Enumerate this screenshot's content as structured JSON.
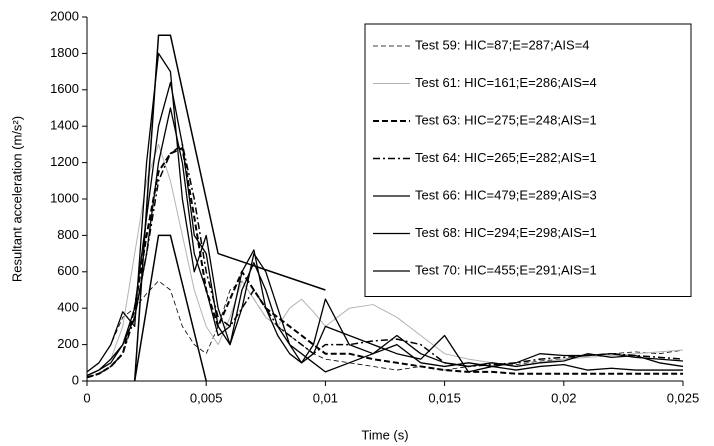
{
  "chart_data": {
    "type": "line",
    "xlabel": "Time (s)",
    "ylabel": "Resultant acceleration (m/s²)",
    "x": [
      0,
      0.0005,
      0.001,
      0.0015,
      0.002,
      0.0025,
      0.003,
      0.0035,
      0.004,
      0.0045,
      0.005,
      0.0055,
      0.006,
      0.0065,
      0.007,
      0.0075,
      0.008,
      0.0085,
      0.009,
      0.0095,
      0.01,
      0.011,
      0.012,
      0.013,
      0.014,
      0.015,
      0.016,
      0.017,
      0.018,
      0.019,
      0.02,
      0.021,
      0.022,
      0.023,
      0.024,
      0.025
    ],
    "series": [
      {
        "name": "Test 59: HIC=87;E=287;AIS=4",
        "color": "#000000",
        "width": 0.8,
        "dash": "5,3",
        "values": [
          50,
          100,
          200,
          350,
          400,
          480,
          550,
          500,
          300,
          200,
          150,
          300,
          500,
          550,
          450,
          350,
          300,
          250,
          200,
          150,
          120,
          100,
          80,
          60,
          80,
          60,
          80,
          100,
          90,
          110,
          120,
          140,
          150,
          160,
          150,
          170
        ]
      },
      {
        "name": "Test 61: HIC=161;E=286;AIS=4",
        "color": "#b4b4b4",
        "width": 1,
        "dash": "",
        "values": [
          30,
          60,
          120,
          300,
          700,
          1100,
          1300,
          1100,
          800,
          500,
          300,
          200,
          350,
          550,
          450,
          350,
          300,
          400,
          450,
          380,
          300,
          400,
          420,
          350,
          250,
          150,
          120,
          100,
          80,
          100,
          120,
          130,
          140,
          150,
          160,
          170
        ]
      },
      {
        "name": "Test 63: HIC=275;E=248;AIS=1",
        "color": "#000000",
        "width": 2,
        "dash": "6,3",
        "values": [
          20,
          40,
          80,
          150,
          400,
          800,
          1150,
          1250,
          1280,
          900,
          500,
          300,
          450,
          600,
          500,
          400,
          350,
          300,
          250,
          200,
          150,
          150,
          120,
          100,
          80,
          60,
          50,
          50,
          40,
          40,
          40,
          40,
          40,
          40,
          40,
          40
        ]
      },
      {
        "name": "Test 64: HIC=265;E=282;AIS=1",
        "color": "#000000",
        "width": 1.5,
        "dash": "7,3,2,3",
        "values": [
          20,
          40,
          80,
          150,
          350,
          700,
          1100,
          1250,
          1300,
          1000,
          600,
          350,
          300,
          400,
          500,
          400,
          300,
          250,
          200,
          150,
          200,
          200,
          220,
          230,
          200,
          100,
          80,
          90,
          100,
          120,
          130,
          140,
          150,
          140,
          130,
          120
        ]
      },
      {
        "name": "Test 66: HIC=479;E=289;AIS=3",
        "color": "#000000",
        "width": 1.3,
        "dash": "",
        "values": [
          50,
          100,
          200,
          380,
          300,
          1200,
          1800,
          1700,
          1000,
          600,
          800,
          400,
          200,
          500,
          650,
          500,
          300,
          200,
          150,
          100,
          50,
          100,
          150,
          200,
          100,
          80,
          100,
          80,
          100,
          150,
          140,
          140,
          150,
          130,
          120,
          110
        ]
      },
      {
        "name": "Test 68: HIC=294;E=298;AIS=1",
        "color": "#000000",
        "width": 1.3,
        "dash": "",
        "values": [
          30,
          60,
          120,
          200,
          400,
          900,
          1400,
          1640,
          1300,
          800,
          700,
          300,
          200,
          400,
          700,
          600,
          400,
          200,
          100,
          200,
          450,
          200,
          150,
          250,
          150,
          100,
          80,
          100,
          80,
          100,
          110,
          150,
          130,
          140,
          100,
          80
        ]
      },
      {
        "name": "Test 70: HIC=455;E=291;AIS=1",
        "color": "#000000",
        "width": 1.3,
        "dash": "",
        "values": [
          30,
          60,
          100,
          200,
          350,
          700,
          1200,
          1500,
          1200,
          700,
          500,
          250,
          300,
          600,
          720,
          400,
          250,
          150,
          100,
          150,
          300,
          250,
          200,
          150,
          120,
          250,
          50,
          80,
          60,
          80,
          90,
          60,
          70,
          60,
          60,
          60
        ]
      }
    ],
    "corridors": [
      {
        "x": [
          0.002,
          0.003,
          0.0035,
          0.0055,
          0.01
        ],
        "y": [
          0,
          1900,
          1900,
          700,
          500
        ]
      },
      {
        "x": [
          0.002,
          0.003,
          0.0035,
          0.005
        ],
        "y": [
          0,
          800,
          800,
          0
        ]
      }
    ],
    "xlim": [
      0,
      0.025
    ],
    "ylim": [
      0,
      2000
    ],
    "xticks": [
      0,
      {
        "value": 0.005,
        "label": "0,005"
      },
      {
        "value": 0.01,
        "label": "0,01"
      },
      {
        "value": 0.015,
        "label": "0,015"
      },
      {
        "value": 0.02,
        "label": "0,02"
      },
      {
        "value": 0.025,
        "label": "0,025"
      }
    ],
    "yticks": [
      0,
      200,
      400,
      600,
      800,
      1000,
      1200,
      1400,
      1600,
      1800,
      2000
    ],
    "legend": "upper right"
  }
}
